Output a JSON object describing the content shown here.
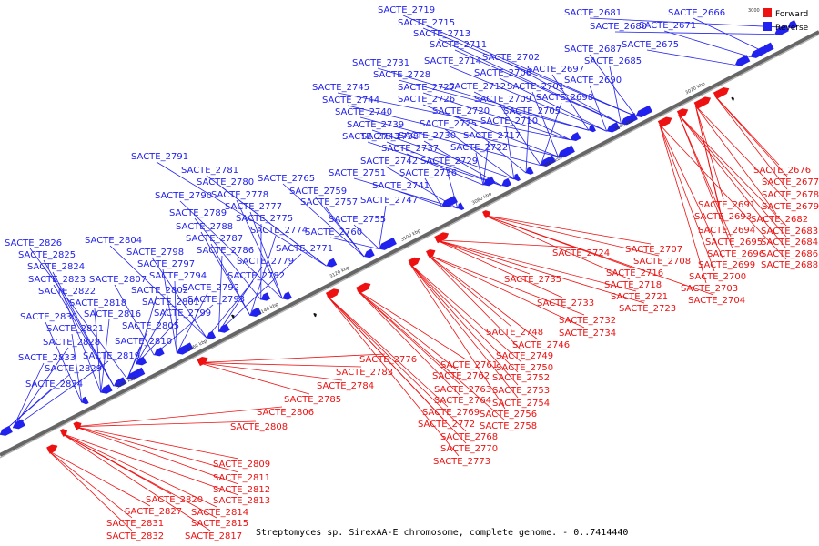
{
  "caption": "Streptomyces sp. SirexAA-E chromosome, complete genome. - 0..7414440",
  "legend": {
    "top_value": "3000",
    "forward_label": "Forward",
    "reverse_label": "Reverse",
    "forward_color": "#ee1111",
    "reverse_color": "#2222ee"
  },
  "colors": {
    "forward": "#ee1111",
    "reverse": "#2222ee",
    "axis": "#666666",
    "other": "#111111"
  },
  "ticks": [
    "3020 kbp",
    "3040 kbp",
    "3060 kbp",
    "3080 kbp",
    "3100 kbp",
    "3120 kbp",
    "3140 kbp",
    "3160 kbp",
    "3180 kbp"
  ],
  "reverse_labels": [
    "SACTE_2719",
    "SACTE_2715",
    "SACTE_2713",
    "SACTE_2711",
    "SACTE_2702",
    "SACTE_2714",
    "SACTE_2706",
    "SACTE_2697",
    "SACTE_2731",
    "SACTE_2728",
    "SACTE_2745",
    "SACTE_2727",
    "SACTE_2712",
    "SACTE_2701",
    "SACTE_2744",
    "SACTE_2726",
    "SACTE_2709",
    "SACTE_2698",
    "SACTE_2740",
    "SACTE_2720",
    "SACTE_2705",
    "SACTE_2739",
    "SACTE_2725",
    "SACTE_2710",
    "SACTE_2738",
    "SACTE_2743",
    "SACTE_2730",
    "SACTE_2717",
    "SACTE_2737",
    "SACTE_2722",
    "SACTE_2742",
    "SACTE_2729",
    "SACTE_2751",
    "SACTE_2736",
    "SACTE_2741",
    "SACTE_2747",
    "SACTE_2755",
    "SACTE_2760",
    "SACTE_2765",
    "SACTE_2759",
    "SACTE_2757",
    "SACTE_2791",
    "SACTE_2781",
    "SACTE_2780",
    "SACTE_2790",
    "SACTE_2778",
    "SACTE_2777",
    "SACTE_2789",
    "SACTE_2775",
    "SACTE_2788",
    "SACTE_2774",
    "SACTE_2787",
    "SACTE_2786",
    "SACTE_2771",
    "SACTE_2779",
    "SACTE_2782",
    "SACTE_2804",
    "SACTE_2798",
    "SACTE_2797",
    "SACTE_2794",
    "SACTE_2792",
    "SACTE_2793",
    "SACTE_2807",
    "SACTE_2802",
    "SACTE_2801",
    "SACTE_2799",
    "SACTE_2805",
    "SACTE_2810",
    "SACTE_2826",
    "SACTE_2825",
    "SACTE_2824",
    "SACTE_2823",
    "SACTE_2822",
    "SACTE_2818",
    "SACTE_2816",
    "SACTE_2830",
    "SACTE_2821",
    "SACTE_2828",
    "SACTE_2819",
    "SACTE_2833",
    "SACTE_2829",
    "SACTE_2834",
    "SACTE_2681",
    "SACTE_2680",
    "SACTE_2666",
    "SACTE_2671",
    "SACTE_2675",
    "SACTE_2687",
    "SACTE_2685",
    "SACTE_2690"
  ],
  "forward_labels": [
    "SACTE_2676",
    "SACTE_2677",
    "SACTE_2678",
    "SACTE_2691",
    "SACTE_2679",
    "SACTE_2693",
    "SACTE_2682",
    "SACTE_2694",
    "SACTE_2683",
    "SACTE_2695",
    "SACTE_2684",
    "SACTE_2696",
    "SACTE_2686",
    "SACTE_2699",
    "SACTE_2688",
    "SACTE_2700",
    "SACTE_2703",
    "SACTE_2704",
    "SACTE_2707",
    "SACTE_2708",
    "SACTE_2716",
    "SACTE_2718",
    "SACTE_2721",
    "SACTE_2723",
    "SACTE_2724",
    "SACTE_2735",
    "SACTE_2733",
    "SACTE_2732",
    "SACTE_2734",
    "SACTE_2748",
    "SACTE_2746",
    "SACTE_2749",
    "SACTE_2750",
    "SACTE_2752",
    "SACTE_2753",
    "SACTE_2754",
    "SACTE_2756",
    "SACTE_2758",
    "SACTE_2761",
    "SACTE_2762",
    "SACTE_2763",
    "SACTE_2764",
    "SACTE_2769",
    "SACTE_2772",
    "SACTE_2768",
    "SACTE_2770",
    "SACTE_2773",
    "SACTE_2776",
    "SACTE_2783",
    "SACTE_2784",
    "SACTE_2785",
    "SACTE_2806",
    "SACTE_2808",
    "SACTE_2809",
    "SACTE_2811",
    "SACTE_2812",
    "SACTE_2813",
    "SACTE_2814",
    "SACTE_2815",
    "SACTE_2817",
    "SACTE_2820",
    "SACTE_2827",
    "SACTE_2831",
    "SACTE_2832"
  ]
}
